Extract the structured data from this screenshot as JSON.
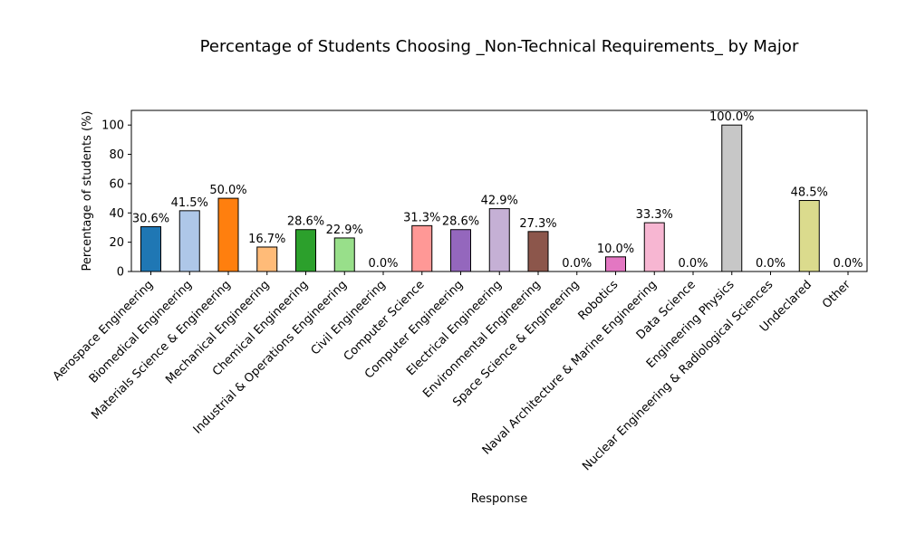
{
  "chart_data": {
    "type": "bar",
    "title": "Percentage of Students Choosing _Non-Technical Requirements_ by Major",
    "xlabel": "Response",
    "ylabel": "Percentage of students (%)",
    "ylim": [
      0,
      110
    ],
    "yticks": [
      0,
      20,
      40,
      60,
      80,
      100
    ],
    "grid": false,
    "legend": "none",
    "categories": [
      "Aerospace Engineering",
      "Biomedical Engineering",
      "Materials Science & Engineering",
      "Mechanical Engineering",
      "Chemical Engineering",
      "Industrial & Operations Engineering",
      "Civil Engineering",
      "Computer Science",
      "Computer Engineering",
      "Electrical Engineering",
      "Environmental Engineering",
      "Space Science & Engineering",
      "Robotics",
      "Naval Architecture & Marine Engineering",
      "Data Science",
      "Engineering Physics",
      "Nuclear Engineering & Radiological Sciences",
      "Undeclared",
      "Other"
    ],
    "values": [
      30.6,
      41.5,
      50.0,
      16.7,
      28.6,
      22.9,
      0.0,
      31.3,
      28.6,
      42.9,
      27.3,
      0.0,
      10.0,
      33.3,
      0.0,
      100.0,
      0.0,
      48.5,
      0.0
    ],
    "data_labels": [
      "30.6%",
      "41.5%",
      "50.0%",
      "16.7%",
      "28.6%",
      "22.9%",
      "0.0%",
      "31.3%",
      "28.6%",
      "42.9%",
      "27.3%",
      "0.0%",
      "10.0%",
      "33.3%",
      "0.0%",
      "100.0%",
      "0.0%",
      "48.5%",
      "0.0%"
    ],
    "colors": [
      "#1f77b4",
      "#aec7e8",
      "#ff7f0e",
      "#ffbb78",
      "#2ca02c",
      "#98df8a",
      "#d62728",
      "#ff9896",
      "#9467bd",
      "#c5b0d5",
      "#8c564b",
      "#c49c94",
      "#e377c2",
      "#f7b6d2",
      "#7f7f7f",
      "#c7c7c7",
      "#bcbd22",
      "#dbdb8d",
      "#17becf"
    ],
    "edge_color": "#000000"
  }
}
